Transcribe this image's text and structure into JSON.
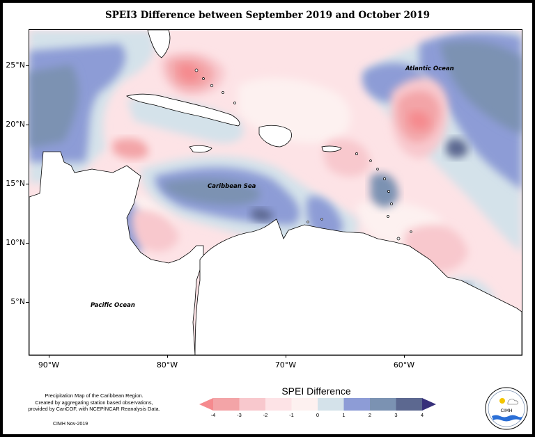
{
  "title": "SPEI3 Difference between September 2019 and October 2019",
  "map": {
    "latitude_labels": [
      "25°N",
      "20°N",
      "15°N",
      "10°N",
      "5°N"
    ],
    "longitude_labels": [
      "90°W",
      "80°W",
      "70°W",
      "60°W"
    ],
    "region_labels": {
      "atlantic": "Atlantic Ocean",
      "caribbean": "Caribbean Sea",
      "pacific": "Pacific Ocean"
    }
  },
  "legend": {
    "title": "SPEI Difference",
    "ticks": [
      "-4",
      "-3",
      "-2",
      "-1",
      "0",
      "1",
      "2",
      "3",
      "4"
    ],
    "colors": [
      "#f58a8e",
      "#f3a4a7",
      "#f8c8cd",
      "#fde3e6",
      "#fdf1f0",
      "#d4e2ea",
      "#8d9cd6",
      "#7b92b2",
      "#5c6890",
      "#37307a"
    ]
  },
  "footnote": {
    "lines": [
      "Precipitation Map of the Caribbean Region.",
      "Created by aggregating station based observations,",
      "provided by CariCOF, with NCEP/NCAR Reanalysis Data."
    ],
    "credit": "CIMH Nov-2019"
  },
  "logo": {
    "text": "CIMH"
  }
}
